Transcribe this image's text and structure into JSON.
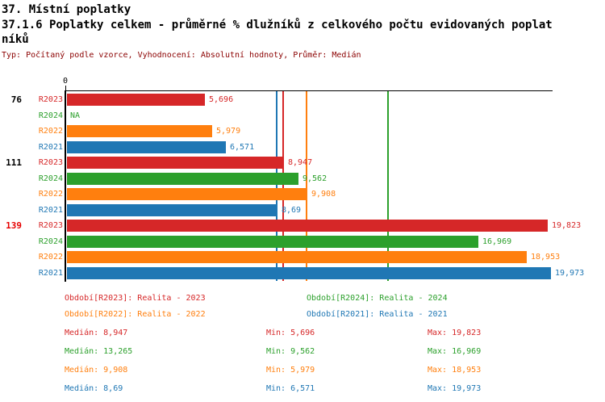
{
  "header": {
    "title": "37. Místní poplatky",
    "subtitle_line1": "37.1.6 Poplatky celkem - průměrné % dlužníků z celkového počtu evidovaných poplat",
    "subtitle_line2": "níků",
    "meta": "Typ: Počítaný podle vzorce, Vyhodnocení: Absolutní hodnoty, Průměr: Medián"
  },
  "colors": {
    "R2023": "#d62728",
    "R2024": "#2ca02c",
    "R2022": "#ff7f0e",
    "R2021": "#1f77b4",
    "meta_text": "#8b0000",
    "group_normal": "#000000",
    "group_highlight": "#e60000",
    "axis": "#000000"
  },
  "chart_data": {
    "type": "bar",
    "orientation": "horizontal",
    "title": "37.1.6 Poplatky celkem - průměrné % dlužníků z celkového počtu evidovaných poplatníků",
    "xlim": [
      0,
      20.1
    ],
    "tick_zero": "0",
    "series_order": [
      "R2023",
      "R2024",
      "R2022",
      "R2021"
    ],
    "groups": [
      {
        "label": "76",
        "highlight": false,
        "bars": [
          {
            "series": "R2023",
            "value": 5.696,
            "display": "5,696"
          },
          {
            "series": "R2024",
            "value": null,
            "display": "NA"
          },
          {
            "series": "R2022",
            "value": 5.979,
            "display": "5,979"
          },
          {
            "series": "R2021",
            "value": 6.571,
            "display": "6,571"
          }
        ]
      },
      {
        "label": "111",
        "highlight": false,
        "bars": [
          {
            "series": "R2023",
            "value": 8.947,
            "display": "8,947"
          },
          {
            "series": "R2024",
            "value": 9.562,
            "display": "9,562"
          },
          {
            "series": "R2022",
            "value": 9.908,
            "display": "9,908"
          },
          {
            "series": "R2021",
            "value": 8.69,
            "display": "8,69"
          }
        ]
      },
      {
        "label": "139",
        "highlight": true,
        "bars": [
          {
            "series": "R2023",
            "value": 19.823,
            "display": "19,823"
          },
          {
            "series": "R2024",
            "value": 16.969,
            "display": "16,969"
          },
          {
            "series": "R2022",
            "value": 18.953,
            "display": "18,953"
          },
          {
            "series": "R2021",
            "value": 19.973,
            "display": "19,973"
          }
        ]
      }
    ],
    "median_lines": [
      {
        "series": "R2021",
        "value": 8.69
      },
      {
        "series": "R2023",
        "value": 8.947
      },
      {
        "series": "R2022",
        "value": 9.908
      },
      {
        "series": "R2024",
        "value": 13.265
      }
    ]
  },
  "legend": {
    "items": [
      {
        "series": "R2023",
        "label": "Období[R2023]: Realita - 2023",
        "row": 0,
        "col": 0
      },
      {
        "series": "R2024",
        "label": "Období[R2024]: Realita - 2024",
        "row": 0,
        "col": 1
      },
      {
        "series": "R2022",
        "label": "Období[R2022]: Realita - 2022",
        "row": 1,
        "col": 0
      },
      {
        "series": "R2021",
        "label": "Období[R2021]: Realita - 2021",
        "row": 1,
        "col": 1
      }
    ]
  },
  "stats": {
    "rows": [
      {
        "series": "R2023",
        "median": "Medián: 8,947",
        "min": "Min: 5,696",
        "max": "Max: 19,823"
      },
      {
        "series": "R2024",
        "median": "Medián: 13,265",
        "min": "Min: 9,562",
        "max": "Max: 16,969"
      },
      {
        "series": "R2022",
        "median": "Medián: 9,908",
        "min": "Min: 5,979",
        "max": "Max: 18,953"
      },
      {
        "series": "R2021",
        "median": "Medián: 8,69",
        "min": "Min: 6,571",
        "max": "Max: 19,973"
      }
    ]
  }
}
